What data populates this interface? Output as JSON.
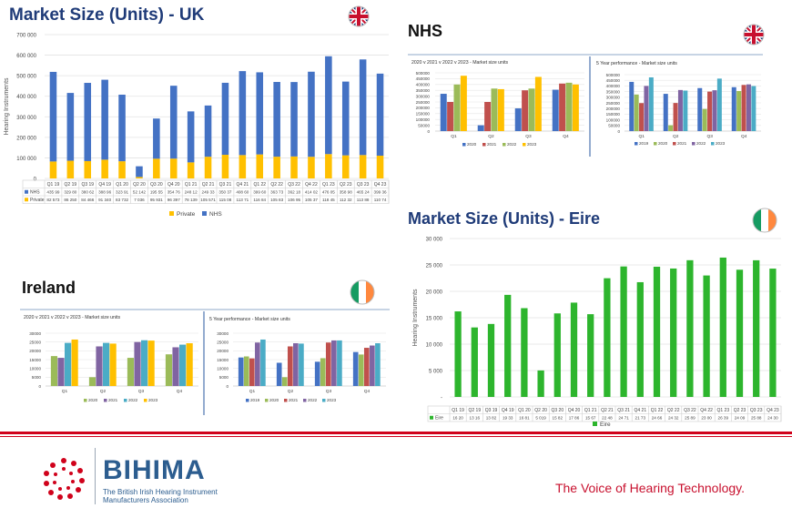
{
  "titles": {
    "uk": "Market Size (Units) - UK",
    "nhs": "NHS",
    "eire": "Market Size (Units) - Eire",
    "ireland": "Ireland"
  },
  "colors": {
    "nhs": "#4472c4",
    "private": "#ffc000",
    "eire": "#2db52d",
    "y2019": "#4472c4",
    "y2020": "#9bbb59",
    "y2021": "#c0504d",
    "y2022": "#8064a2",
    "y2023": "#4bacc6",
    "heading": "#1f3b78",
    "accent_red": "#c8102e"
  },
  "logo": {
    "name": "BIHIMA",
    "subtitle": "The British Irish Hearing Instrument Manufacturers Association"
  },
  "tagline": "The Voice of Hearing Technology.",
  "chart_data": [
    {
      "id": "uk",
      "type": "bar",
      "stacked": true,
      "ylabel": "Hearing Instruments",
      "ylim": [
        0,
        700000
      ],
      "yticks": [
        "0",
        "100 000",
        "200 000",
        "300 000",
        "400 000",
        "500 000",
        "600 000",
        "700 000"
      ],
      "categories": [
        "Q1 19",
        "Q2 19",
        "Q3 19",
        "Q4 19",
        "Q1 20",
        "Q2 20",
        "Q3 20",
        "Q4 20",
        "Q1 21",
        "Q2 21",
        "Q3 21",
        "Q4 21",
        "Q1 22",
        "Q2 22",
        "Q3 22",
        "Q4 22",
        "Q1 23",
        "Q2 23",
        "Q3 23",
        "Q4 23"
      ],
      "series": [
        {
          "name": "NHS",
          "values": [
            435990,
            329800,
            380620,
            388960,
            323910,
            52142,
            195550,
            354760,
            248120,
            249330,
            350370,
            408600,
            399600,
            363730,
            362180,
            414020,
            476050,
            358980,
            465240,
            399360
          ],
          "labels": [
            "435 99",
            "329 80",
            "380 62",
            "388 96",
            "323 91",
            "52 142",
            "195 55",
            "354 76",
            "248 12",
            "249 33",
            "350 37",
            "408 60",
            "399 60",
            "363 73",
            "362 18",
            "414 02",
            "476 05",
            "358 98",
            "465 24",
            "399 36"
          ]
        },
        {
          "name": "Private",
          "values": [
            82573,
            86250,
            84466,
            91340,
            83732,
            7036,
            95931,
            96397,
            78139,
            105571,
            115080,
            113710,
            116840,
            105830,
            106950,
            105370,
            118450,
            112320,
            113880,
            110740
          ],
          "labels": [
            "82 573",
            "86 250",
            "84 466",
            "91 340",
            "83 732",
            "7 036",
            "95 931",
            "96 397",
            "78 139",
            "105 571",
            "115 08",
            "113 71",
            "116 84",
            "105 83",
            "106 95",
            "105 37",
            "118 45",
            "112 32",
            "113 88",
            "110 74"
          ]
        }
      ],
      "legend": [
        "Private",
        "NHS"
      ]
    },
    {
      "id": "nhs_qtr",
      "type": "bar",
      "title": "2020 v 2021 v 2022 v 2023  - Market size units",
      "ylim": [
        0,
        500000
      ],
      "yticks": [
        "0",
        "50000",
        "100000",
        "150000",
        "200000",
        "250000",
        "300000",
        "350000",
        "400000",
        "450000",
        "500000"
      ],
      "categories": [
        "Q1",
        "Q2",
        "Q3",
        "Q4"
      ],
      "series": [
        {
          "name": "2020",
          "values": [
            320000,
            50000,
            195000,
            355000
          ]
        },
        {
          "name": "2021",
          "values": [
            250000,
            250000,
            350000,
            408000
          ]
        },
        {
          "name": "2022",
          "values": [
            400000,
            365000,
            365000,
            415000
          ]
        },
        {
          "name": "2023",
          "values": [
            475000,
            360000,
            465000,
            400000
          ]
        }
      ]
    },
    {
      "id": "nhs_5yr",
      "type": "bar",
      "title": "5 Year performance  - Market size units",
      "ylim": [
        0,
        500000
      ],
      "yticks": [
        "0",
        "50000",
        "100000",
        "150000",
        "200000",
        "250000",
        "300000",
        "350000",
        "400000",
        "450000",
        "500000"
      ],
      "categories": [
        "Q1",
        "Q2",
        "Q3",
        "Q4"
      ],
      "series": [
        {
          "name": "2019",
          "values": [
            436000,
            330000,
            381000,
            389000
          ]
        },
        {
          "name": "2020",
          "values": [
            324000,
            52000,
            196000,
            355000
          ]
        },
        {
          "name": "2021",
          "values": [
            248000,
            249000,
            350000,
            409000
          ]
        },
        {
          "name": "2022",
          "values": [
            400000,
            364000,
            362000,
            414000
          ]
        },
        {
          "name": "2023",
          "values": [
            476000,
            359000,
            465000,
            399000
          ]
        }
      ]
    },
    {
      "id": "ireland_qtr",
      "type": "bar",
      "title": "2020 v 2021 v 2022 v 2023  - Market size units",
      "ylim": [
        0,
        30000
      ],
      "yticks": [
        "0",
        "5000",
        "10000",
        "15000",
        "20000",
        "25000",
        "30000"
      ],
      "categories": [
        "Q1",
        "Q2",
        "Q3",
        "Q4"
      ],
      "series": [
        {
          "name": "2020",
          "values": [
            17000,
            5000,
            16000,
            18000
          ]
        },
        {
          "name": "2021",
          "values": [
            16000,
            22500,
            25000,
            22000
          ]
        },
        {
          "name": "2022",
          "values": [
            24500,
            24500,
            26000,
            23500
          ]
        },
        {
          "name": "2023",
          "values": [
            26400,
            24100,
            25800,
            24300
          ]
        }
      ]
    },
    {
      "id": "ireland_5yr",
      "type": "bar",
      "title": "5 Year performance  - Market size units",
      "ylim": [
        0,
        30000
      ],
      "yticks": [
        "0",
        "5000",
        "10000",
        "15000",
        "20000",
        "25000",
        "30000"
      ],
      "categories": [
        "Q1",
        "Q2",
        "Q3",
        "Q4"
      ],
      "series": [
        {
          "name": "2019",
          "values": [
            16200,
            13200,
            13800,
            19300
          ]
        },
        {
          "name": "2020",
          "values": [
            16800,
            5000,
            15800,
            17900
          ]
        },
        {
          "name": "2021",
          "values": [
            15700,
            22500,
            24700,
            21700
          ]
        },
        {
          "name": "2022",
          "values": [
            24700,
            24300,
            25900,
            23000
          ]
        },
        {
          "name": "2023",
          "values": [
            26400,
            24100,
            25900,
            24300
          ]
        }
      ]
    },
    {
      "id": "eire",
      "type": "bar",
      "ylabel": "Hearing Instruments",
      "ylim": [
        0,
        30000
      ],
      "yticks": [
        "-",
        "5 000",
        "10 000",
        "15 000",
        "20 000",
        "25 000",
        "30 000"
      ],
      "categories": [
        "Q1 19",
        "Q2 19",
        "Q3 19",
        "Q4 19",
        "Q1 20",
        "Q2 20",
        "Q3 20",
        "Q4 20",
        "Q1 21",
        "Q2 21",
        "Q3 21",
        "Q4 21",
        "Q1 22",
        "Q2 22",
        "Q3 22",
        "Q4 22",
        "Q1 23",
        "Q2 23",
        "Q3 23",
        "Q4 23"
      ],
      "series": [
        {
          "name": "Eire",
          "values": [
            16200,
            13160,
            13820,
            19330,
            16810,
            5019,
            15820,
            17860,
            15670,
            22480,
            24710,
            21730,
            24660,
            24320,
            25890,
            23000,
            26390,
            24090,
            25880,
            24300
          ],
          "labels": [
            "16 20",
            "13 16",
            "13 82",
            "19 33",
            "16 81",
            "5 019",
            "15 82",
            "17 86",
            "15 67",
            "22 48",
            "24 71",
            "21 73",
            "24 66",
            "24 32",
            "25 89",
            "23 00",
            "26 39",
            "24 09",
            "25 88",
            "24 30"
          ]
        }
      ],
      "legend": [
        "Eire"
      ]
    }
  ]
}
